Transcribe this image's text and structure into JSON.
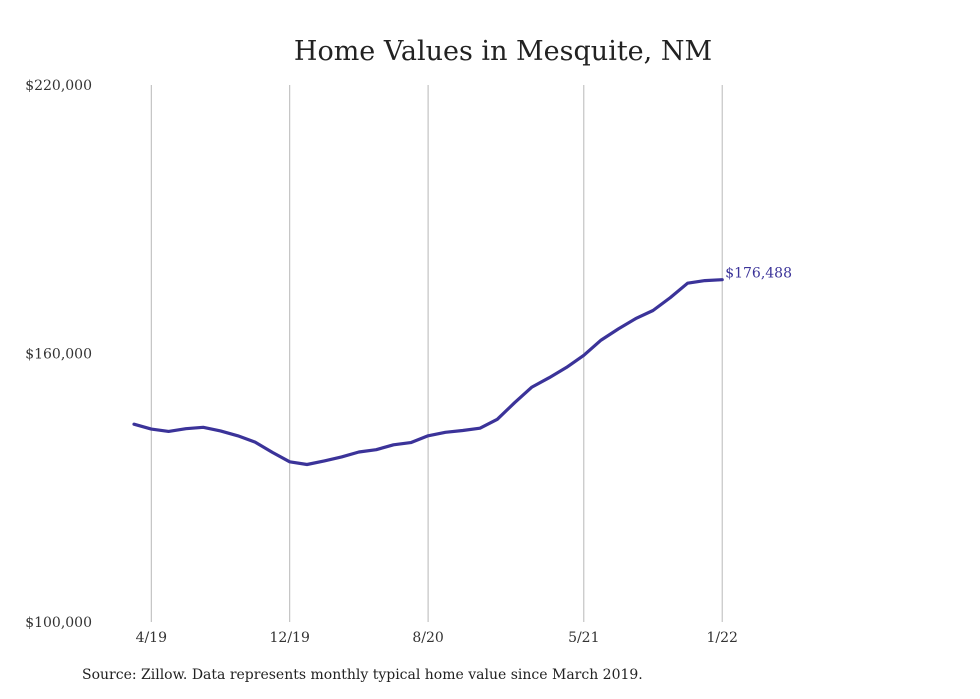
{
  "chart_data": {
    "type": "line",
    "title": "Home Values in Mesquite, NM",
    "xlabel": "",
    "ylabel": "",
    "ylim": [
      100000,
      220000
    ],
    "y_ticks": [
      "$100,000",
      "$160,000",
      "$220,000"
    ],
    "y_tick_values": [
      100000,
      160000,
      220000
    ],
    "x_ticks": [
      "4/19",
      "12/19",
      "8/20",
      "5/21",
      "1/22"
    ],
    "x_tick_month_index": [
      1,
      9,
      17,
      26,
      34
    ],
    "x_start": "2019-03",
    "grid": "vertical",
    "line_color": "#3b3399",
    "series": [
      {
        "values": [
          144200,
          143100,
          142600,
          143200,
          143500,
          142700,
          141600,
          140200,
          137900,
          135800,
          135200,
          136000,
          136900,
          138000,
          138500,
          139600,
          140100,
          141600,
          142400,
          142800,
          143300,
          145300,
          149000,
          152500,
          154600,
          156900,
          159600,
          163000,
          165500,
          167800,
          169600,
          172500,
          175700,
          176300,
          176488
        ]
      }
    ],
    "end_label": "$176,488"
  },
  "source_text": "Source: Zillow. Data represents monthly typical home value since March 2019."
}
